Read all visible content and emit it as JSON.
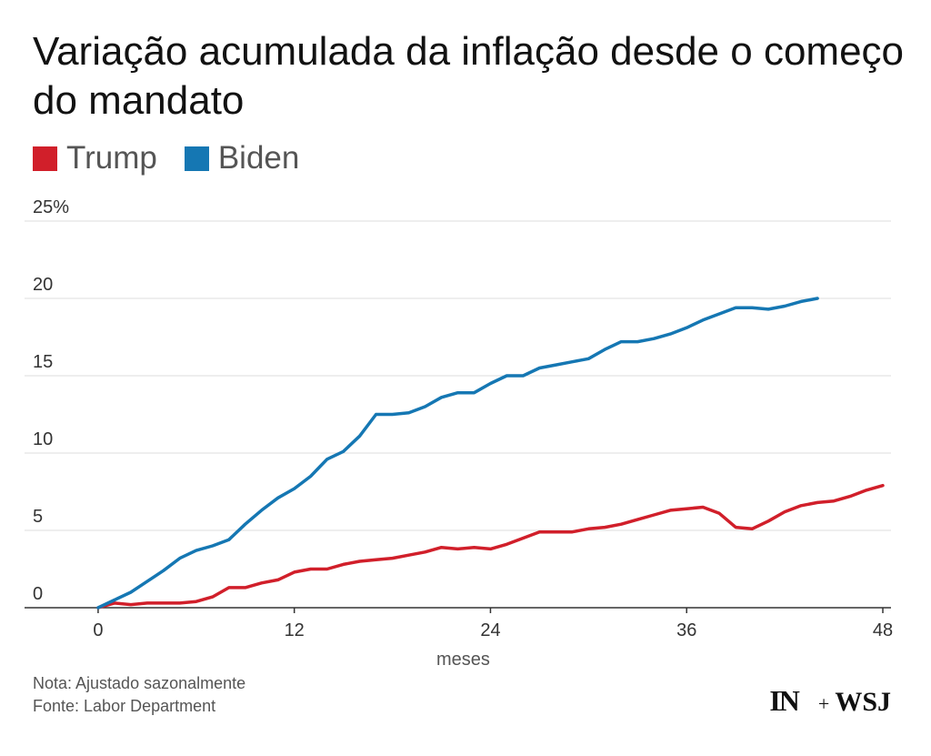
{
  "header": {
    "title": "Variação acumulada da inflação desde o começo do mandato"
  },
  "legend": [
    {
      "label": "Trump",
      "color": "#d11f2a"
    },
    {
      "label": "Biden",
      "color": "#1577b3"
    }
  ],
  "chart_data": {
    "type": "line",
    "title": "Variação acumulada da inflação desde o começo do mandato",
    "xlabel": "meses",
    "ylabel": "",
    "xlim": [
      -4.5,
      48.5
    ],
    "ylim": [
      0,
      25
    ],
    "x_ticks": [
      0,
      12,
      24,
      36,
      48
    ],
    "x_tick_labels": [
      "0",
      "12",
      "24",
      "36",
      "48"
    ],
    "y_ticks": [
      0,
      5,
      10,
      15,
      20,
      25
    ],
    "y_tick_labels": [
      "0",
      "5",
      "10",
      "15",
      "20",
      "25%"
    ],
    "grid": true,
    "legend_position": "top-left",
    "series": [
      {
        "name": "Trump",
        "color": "#d11f2a",
        "x": [
          0,
          1,
          2,
          3,
          4,
          5,
          6,
          7,
          8,
          9,
          10,
          11,
          12,
          13,
          14,
          15,
          16,
          17,
          18,
          19,
          20,
          21,
          22,
          23,
          24,
          25,
          26,
          27,
          28,
          29,
          30,
          31,
          32,
          33,
          34,
          35,
          36,
          37,
          38,
          39,
          40,
          41,
          42,
          43,
          44,
          45,
          46,
          47,
          48
        ],
        "values": [
          0,
          0.3,
          0.2,
          0.3,
          0.3,
          0.3,
          0.4,
          0.7,
          1.3,
          1.3,
          1.6,
          1.8,
          2.3,
          2.5,
          2.5,
          2.8,
          3.0,
          3.1,
          3.2,
          3.4,
          3.6,
          3.9,
          3.8,
          3.9,
          3.8,
          4.1,
          4.5,
          4.9,
          4.9,
          4.9,
          5.1,
          5.2,
          5.4,
          5.7,
          6.0,
          6.3,
          6.4,
          6.5,
          6.1,
          5.2,
          5.1,
          5.6,
          6.2,
          6.6,
          6.8,
          6.9,
          7.2,
          7.6,
          7.9
        ]
      },
      {
        "name": "Biden",
        "color": "#1577b3",
        "x": [
          0,
          1,
          2,
          3,
          4,
          5,
          6,
          7,
          8,
          9,
          10,
          11,
          12,
          13,
          14,
          15,
          16,
          17,
          18,
          19,
          20,
          21,
          22,
          23,
          24,
          25,
          26,
          27,
          28,
          29,
          30,
          31,
          32,
          33,
          34,
          35,
          36,
          37,
          38,
          39,
          40,
          41,
          42,
          43,
          44
        ],
        "values": [
          0,
          0.5,
          1.0,
          1.7,
          2.4,
          3.2,
          3.7,
          4.0,
          4.4,
          5.4,
          6.3,
          7.1,
          7.7,
          8.5,
          9.6,
          10.1,
          11.1,
          12.5,
          12.5,
          12.6,
          13.0,
          13.6,
          13.9,
          13.9,
          14.5,
          15.0,
          15.0,
          15.5,
          15.7,
          15.9,
          16.1,
          16.7,
          17.2,
          17.2,
          17.4,
          17.7,
          18.1,
          18.6,
          19.0,
          19.4,
          19.4,
          19.3,
          19.5,
          19.8,
          20.0
        ]
      }
    ]
  },
  "footer": {
    "note": "Nota: Ajustado sazonalmente",
    "source": "Fonte: Labor Department"
  },
  "branding": {
    "logo_left": "IN",
    "logo_plus": "+",
    "logo_right": "WSJ"
  }
}
